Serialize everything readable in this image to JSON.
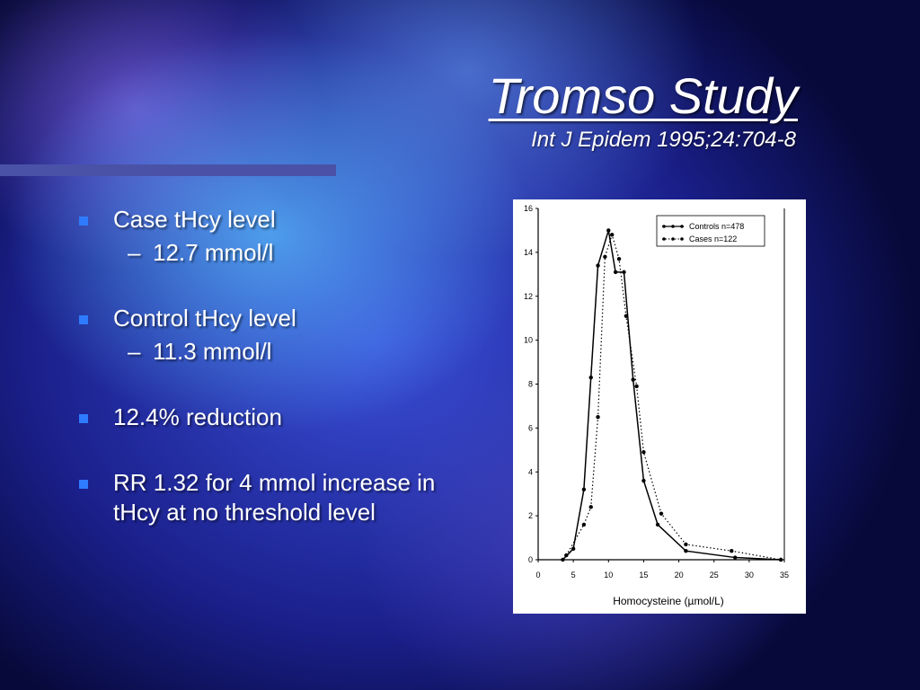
{
  "slide": {
    "title": "Tromso Study",
    "subtitle": "Int J Epidem 1995;24:704-8",
    "bullets": [
      {
        "text": "Case tHcy level",
        "sub": "12.7 mmol/l"
      },
      {
        "text": "Control tHcy level",
        "sub": "11.3 mmol/l"
      },
      {
        "text": "12.4% reduction"
      },
      {
        "text": "RR 1.32 for 4 mmol increase in tHcy at no threshold level"
      }
    ]
  },
  "chart_data": {
    "type": "line",
    "xlabel": "Homocysteine (µmol/L)",
    "ylabel": "",
    "xlim": [
      0,
      35
    ],
    "ylim": [
      0,
      16
    ],
    "xticks": [
      0,
      5,
      10,
      15,
      20,
      25,
      30,
      35
    ],
    "yticks": [
      0,
      2,
      4,
      6,
      8,
      10,
      12,
      14,
      16
    ],
    "grid": false,
    "legend_position": "top-right",
    "series": [
      {
        "name": "Controls n=478",
        "style": "solid",
        "x": [
          3.5,
          5,
          6.5,
          7.5,
          8.5,
          10,
          11,
          12.2,
          13.5,
          15,
          17,
          21,
          28,
          34.5
        ],
        "y": [
          0,
          0.5,
          3.2,
          8.3,
          13.4,
          15,
          13.1,
          13.1,
          8.2,
          3.6,
          1.6,
          0.4,
          0.1,
          0
        ]
      },
      {
        "name": "Cases n=122",
        "style": "dotted",
        "x": [
          4,
          6.5,
          7.5,
          8.5,
          9.5,
          10.5,
          11.5,
          12.5,
          14,
          15,
          17.5,
          21,
          27.5,
          34.5
        ],
        "y": [
          0.2,
          1.6,
          2.4,
          6.5,
          13.8,
          14.8,
          13.7,
          11.1,
          7.9,
          4.9,
          2.1,
          0.7,
          0.4,
          0
        ]
      }
    ]
  }
}
